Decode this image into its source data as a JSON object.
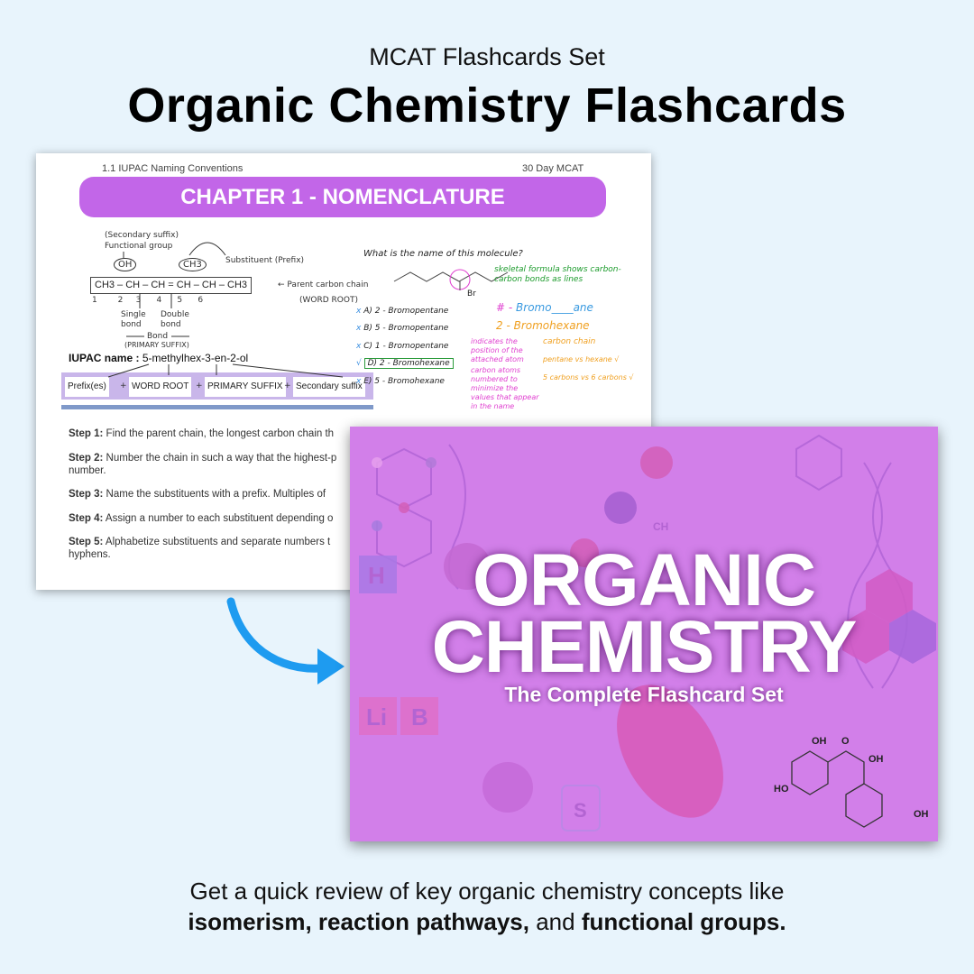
{
  "header": {
    "subtitle": "MCAT Flashcards Set",
    "title": "Organic Chemistry Flashcards"
  },
  "preview": {
    "section": "1.1 IUPAC Naming Conventions",
    "brand": "30 Day MCAT",
    "chapter": "CHAPTER 1 - NOMENCLATURE",
    "diagram": {
      "secondary_suffix": "(Secondary suffix)",
      "functional_group": "Functional group",
      "oh": "OH",
      "ch3": "CH3",
      "substituent": "Substituent  (Prefix)",
      "chain": "CH3 – CH – CH = CH – CH – CH3",
      "numbers": "1        2     3      4      5      6",
      "parent": "← Parent carbon chain",
      "word_root_note": "(WORD ROOT)",
      "single": "Single bond",
      "double": "Double bond",
      "bond": "Bond",
      "primary_suffix_note": "(PRIMARY SUFFIX)",
      "iupac_label": "IUPAC name :",
      "iupac_value": "5-methylhex-3-en-2-ol",
      "formula": [
        "Prefix(es)",
        "WORD ROOT",
        "PRIMARY SUFFIX",
        "Secondary suffix"
      ],
      "plus": "+"
    },
    "question": {
      "prompt": "What is the name of this molecule?",
      "br": "Br",
      "note_skeletal": "skeletal formula shows carbon-carbon bonds as lines",
      "options": [
        {
          "mark": "x",
          "label": "A) 2 - Bromopentane"
        },
        {
          "mark": "x",
          "label": "B) 5 - Bromopentane"
        },
        {
          "mark": "x",
          "label": "C) 1 - Bromopentane"
        },
        {
          "mark": "√",
          "label": "D) 2 - Bromohexane"
        },
        {
          "mark": "x",
          "label": "E) 5 - Bromohexane"
        }
      ],
      "pattern_hash": "# -",
      "pattern_rest": "Bromo____ane",
      "answer": "2 - Bromohexane",
      "note_position": "indicates the position of the attached atom",
      "note_numbered": "carbon atoms numbered to minimize the values that appear in the name",
      "note_chain": "carbon chain",
      "note_pentane": "pentane vs hexane √",
      "note_carbons": "5 carbons vs 6 carbons √"
    },
    "steps": [
      {
        "label": "Step 1:",
        "text": " Find the parent chain, the longest carbon chain th"
      },
      {
        "label": "Step 2:",
        "text": " Number the chain in such a way that the highest-p",
        "cont": "number."
      },
      {
        "label": "Step 3:",
        "text": " Name the substituents with a prefix. Multiples of"
      },
      {
        "label": "Step 4:",
        "text": " Assign a number to each substituent depending o"
      },
      {
        "label": "Step 5:",
        "text": " Alphabetize substituents and separate numbers t",
        "cont": "hyphens."
      }
    ]
  },
  "cover": {
    "line1": "ORGANIC",
    "line2": "CHEMISTRY",
    "tagline": "The Complete Flashcard Set",
    "labels": {
      "h": "H",
      "li": "Li",
      "b": "B",
      "ch": "CH",
      "s": "S",
      "oh": "OH",
      "o": "O",
      "ho": "HO"
    },
    "bg": "#d27fe9"
  },
  "arrow": {
    "icon": "curved-arrow-icon",
    "color": "#1e9bf0"
  },
  "footer": {
    "line1": "Get a quick review of key organic chemistry concepts like",
    "b1": "isomerism, reaction pathways,",
    "mid": " and ",
    "b2": "functional groups."
  }
}
